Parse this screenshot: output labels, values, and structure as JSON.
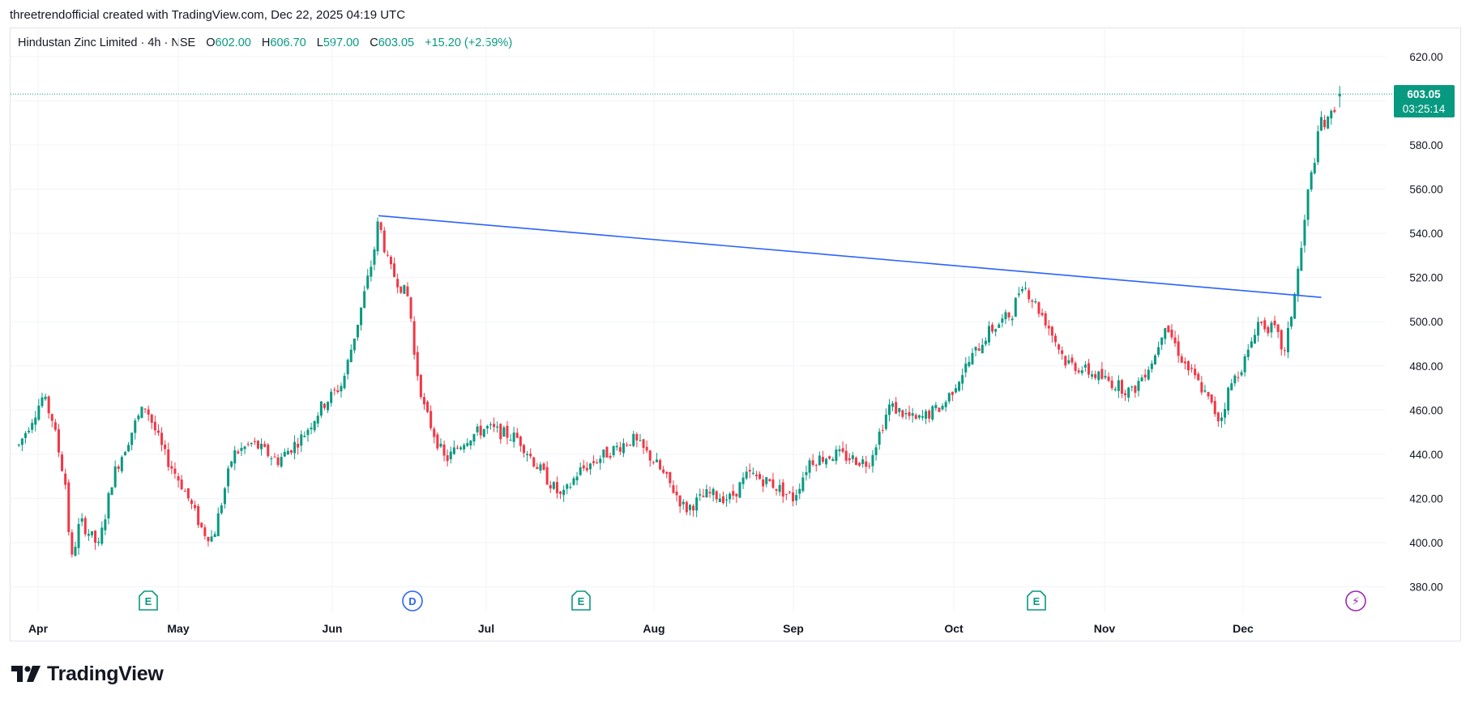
{
  "attribution": "threetrendofficial created with TradingView.com, Dec 22, 2025 04:19 UTC",
  "legend": {
    "symbol": "Hindustan Zinc Limited · 4h · NSE",
    "open_label": "O",
    "open": "602.00",
    "high_label": "H",
    "high": "606.70",
    "low_label": "L",
    "low": "597.00",
    "close_label": "C",
    "close": "603.05",
    "change": "+15.20 (+2.59%)"
  },
  "price_tag": {
    "price": "603.05",
    "countdown": "03:25:14"
  },
  "footer": {
    "brand": "TradingView"
  },
  "colors": {
    "up": "#089981",
    "down": "#f23645",
    "trendline": "#2962ff",
    "grid": "#f0f3fa",
    "axis_text": "#131722"
  },
  "chart_data": {
    "type": "candlestick",
    "timeframe": "4h",
    "y_axis": {
      "ticks": [
        380,
        400,
        420,
        440,
        460,
        480,
        500,
        520,
        540,
        560,
        580,
        600,
        620
      ],
      "tick_labels": [
        "380.00",
        "400.00",
        "420.00",
        "440.00",
        "460.00",
        "480.00",
        "500.00",
        "520.00",
        "540.00",
        "560.00",
        "580.00",
        "",
        "620.00"
      ],
      "range": [
        371,
        641
      ]
    },
    "x_axis": {
      "labels": [
        "Apr",
        "May",
        "Jun",
        "Jul",
        "Aug",
        "Sep",
        "Oct",
        "Nov",
        "Dec"
      ]
    },
    "grid": true,
    "last_price": 603.05,
    "trendline": {
      "from": {
        "date": "2025-06-10",
        "price": 548
      },
      "to": {
        "date": "2025-12-18",
        "price": 511
      },
      "color": "#2962ff"
    },
    "events": [
      {
        "type": "earnings",
        "label": "E",
        "near": "Apr 22"
      },
      {
        "type": "dividend",
        "label": "D",
        "near": "Jun 13"
      },
      {
        "type": "earnings",
        "label": "E",
        "near": "Jul 16"
      },
      {
        "type": "earnings",
        "label": "E",
        "near": "Oct 17"
      },
      {
        "type": "news",
        "label": "⚡",
        "near": "Dec 20"
      }
    ],
    "price_path": [
      {
        "date": "Mar 28",
        "close": 444
      },
      {
        "date": "Apr 2",
        "close": 466
      },
      {
        "date": "Apr 4",
        "close": 456
      },
      {
        "date": "Apr 7",
        "close": 425
      },
      {
        "date": "Apr 8",
        "close": 390
      },
      {
        "date": "Apr 10",
        "close": 410
      },
      {
        "date": "Apr 14",
        "close": 398
      },
      {
        "date": "Apr 17",
        "close": 430
      },
      {
        "date": "Apr 22",
        "close": 455
      },
      {
        "date": "Apr 24",
        "close": 462
      },
      {
        "date": "Apr 28",
        "close": 440
      },
      {
        "date": "May 2",
        "close": 425
      },
      {
        "date": "May 6",
        "close": 405
      },
      {
        "date": "May 8",
        "close": 402
      },
      {
        "date": "May 12",
        "close": 440
      },
      {
        "date": "May 16",
        "close": 445
      },
      {
        "date": "May 21",
        "close": 437
      },
      {
        "date": "May 26",
        "close": 448
      },
      {
        "date": "May 30",
        "close": 462
      },
      {
        "date": "Jun 3",
        "close": 472
      },
      {
        "date": "Jun 6",
        "close": 500
      },
      {
        "date": "Jun 9",
        "close": 530
      },
      {
        "date": "Jun 10",
        "close": 546
      },
      {
        "date": "Jun 12",
        "close": 525
      },
      {
        "date": "Jun 16",
        "close": 510
      },
      {
        "date": "Jun 17",
        "close": 484
      },
      {
        "date": "Jun 19",
        "close": 460
      },
      {
        "date": "Jun 23",
        "close": 437
      },
      {
        "date": "Jun 27",
        "close": 447
      },
      {
        "date": "Jul 1",
        "close": 452
      },
      {
        "date": "Jul 7",
        "close": 447
      },
      {
        "date": "Jul 10",
        "close": 436
      },
      {
        "date": "Jul 15",
        "close": 420
      },
      {
        "date": "Jul 18",
        "close": 432
      },
      {
        "date": "Jul 23",
        "close": 440
      },
      {
        "date": "Jul 28",
        "close": 447
      },
      {
        "date": "Aug 1",
        "close": 437
      },
      {
        "date": "Aug 5",
        "close": 425
      },
      {
        "date": "Aug 8",
        "close": 415
      },
      {
        "date": "Aug 13",
        "close": 422
      },
      {
        "date": "Aug 18",
        "close": 420
      },
      {
        "date": "Aug 22",
        "close": 431
      },
      {
        "date": "Aug 27",
        "close": 427
      },
      {
        "date": "Sep 1",
        "close": 420
      },
      {
        "date": "Sep 4",
        "close": 437
      },
      {
        "date": "Sep 9",
        "close": 440
      },
      {
        "date": "Sep 15",
        "close": 436
      },
      {
        "date": "Sep 19",
        "close": 462
      },
      {
        "date": "Sep 24",
        "close": 455
      },
      {
        "date": "Sep 29",
        "close": 462
      },
      {
        "date": "Oct 3",
        "close": 478
      },
      {
        "date": "Oct 8",
        "close": 495
      },
      {
        "date": "Oct 13",
        "close": 504
      },
      {
        "date": "Oct 15",
        "close": 518
      },
      {
        "date": "Oct 20",
        "close": 500
      },
      {
        "date": "Oct 24",
        "close": 482
      },
      {
        "date": "Oct 28",
        "close": 478
      },
      {
        "date": "Nov 3",
        "close": 472
      },
      {
        "date": "Nov 7",
        "close": 468
      },
      {
        "date": "Nov 12",
        "close": 485
      },
      {
        "date": "Nov 14",
        "close": 500
      },
      {
        "date": "Nov 18",
        "close": 482
      },
      {
        "date": "Nov 22",
        "close": 470
      },
      {
        "date": "Nov 26",
        "close": 455
      },
      {
        "date": "Nov 28",
        "close": 470
      },
      {
        "date": "Dec 2",
        "close": 485
      },
      {
        "date": "Dec 4",
        "close": 500
      },
      {
        "date": "Dec 8",
        "close": 496
      },
      {
        "date": "Dec 10",
        "close": 485
      },
      {
        "date": "Dec 12",
        "close": 510
      },
      {
        "date": "Dec 14",
        "close": 538
      },
      {
        "date": "Dec 15",
        "close": 557
      },
      {
        "date": "Dec 16",
        "close": 568
      },
      {
        "date": "Dec 17",
        "close": 580
      },
      {
        "date": "Dec 18",
        "close": 592
      },
      {
        "date": "Dec 19",
        "close": 588
      },
      {
        "date": "Dec 22",
        "close": 603
      }
    ]
  }
}
